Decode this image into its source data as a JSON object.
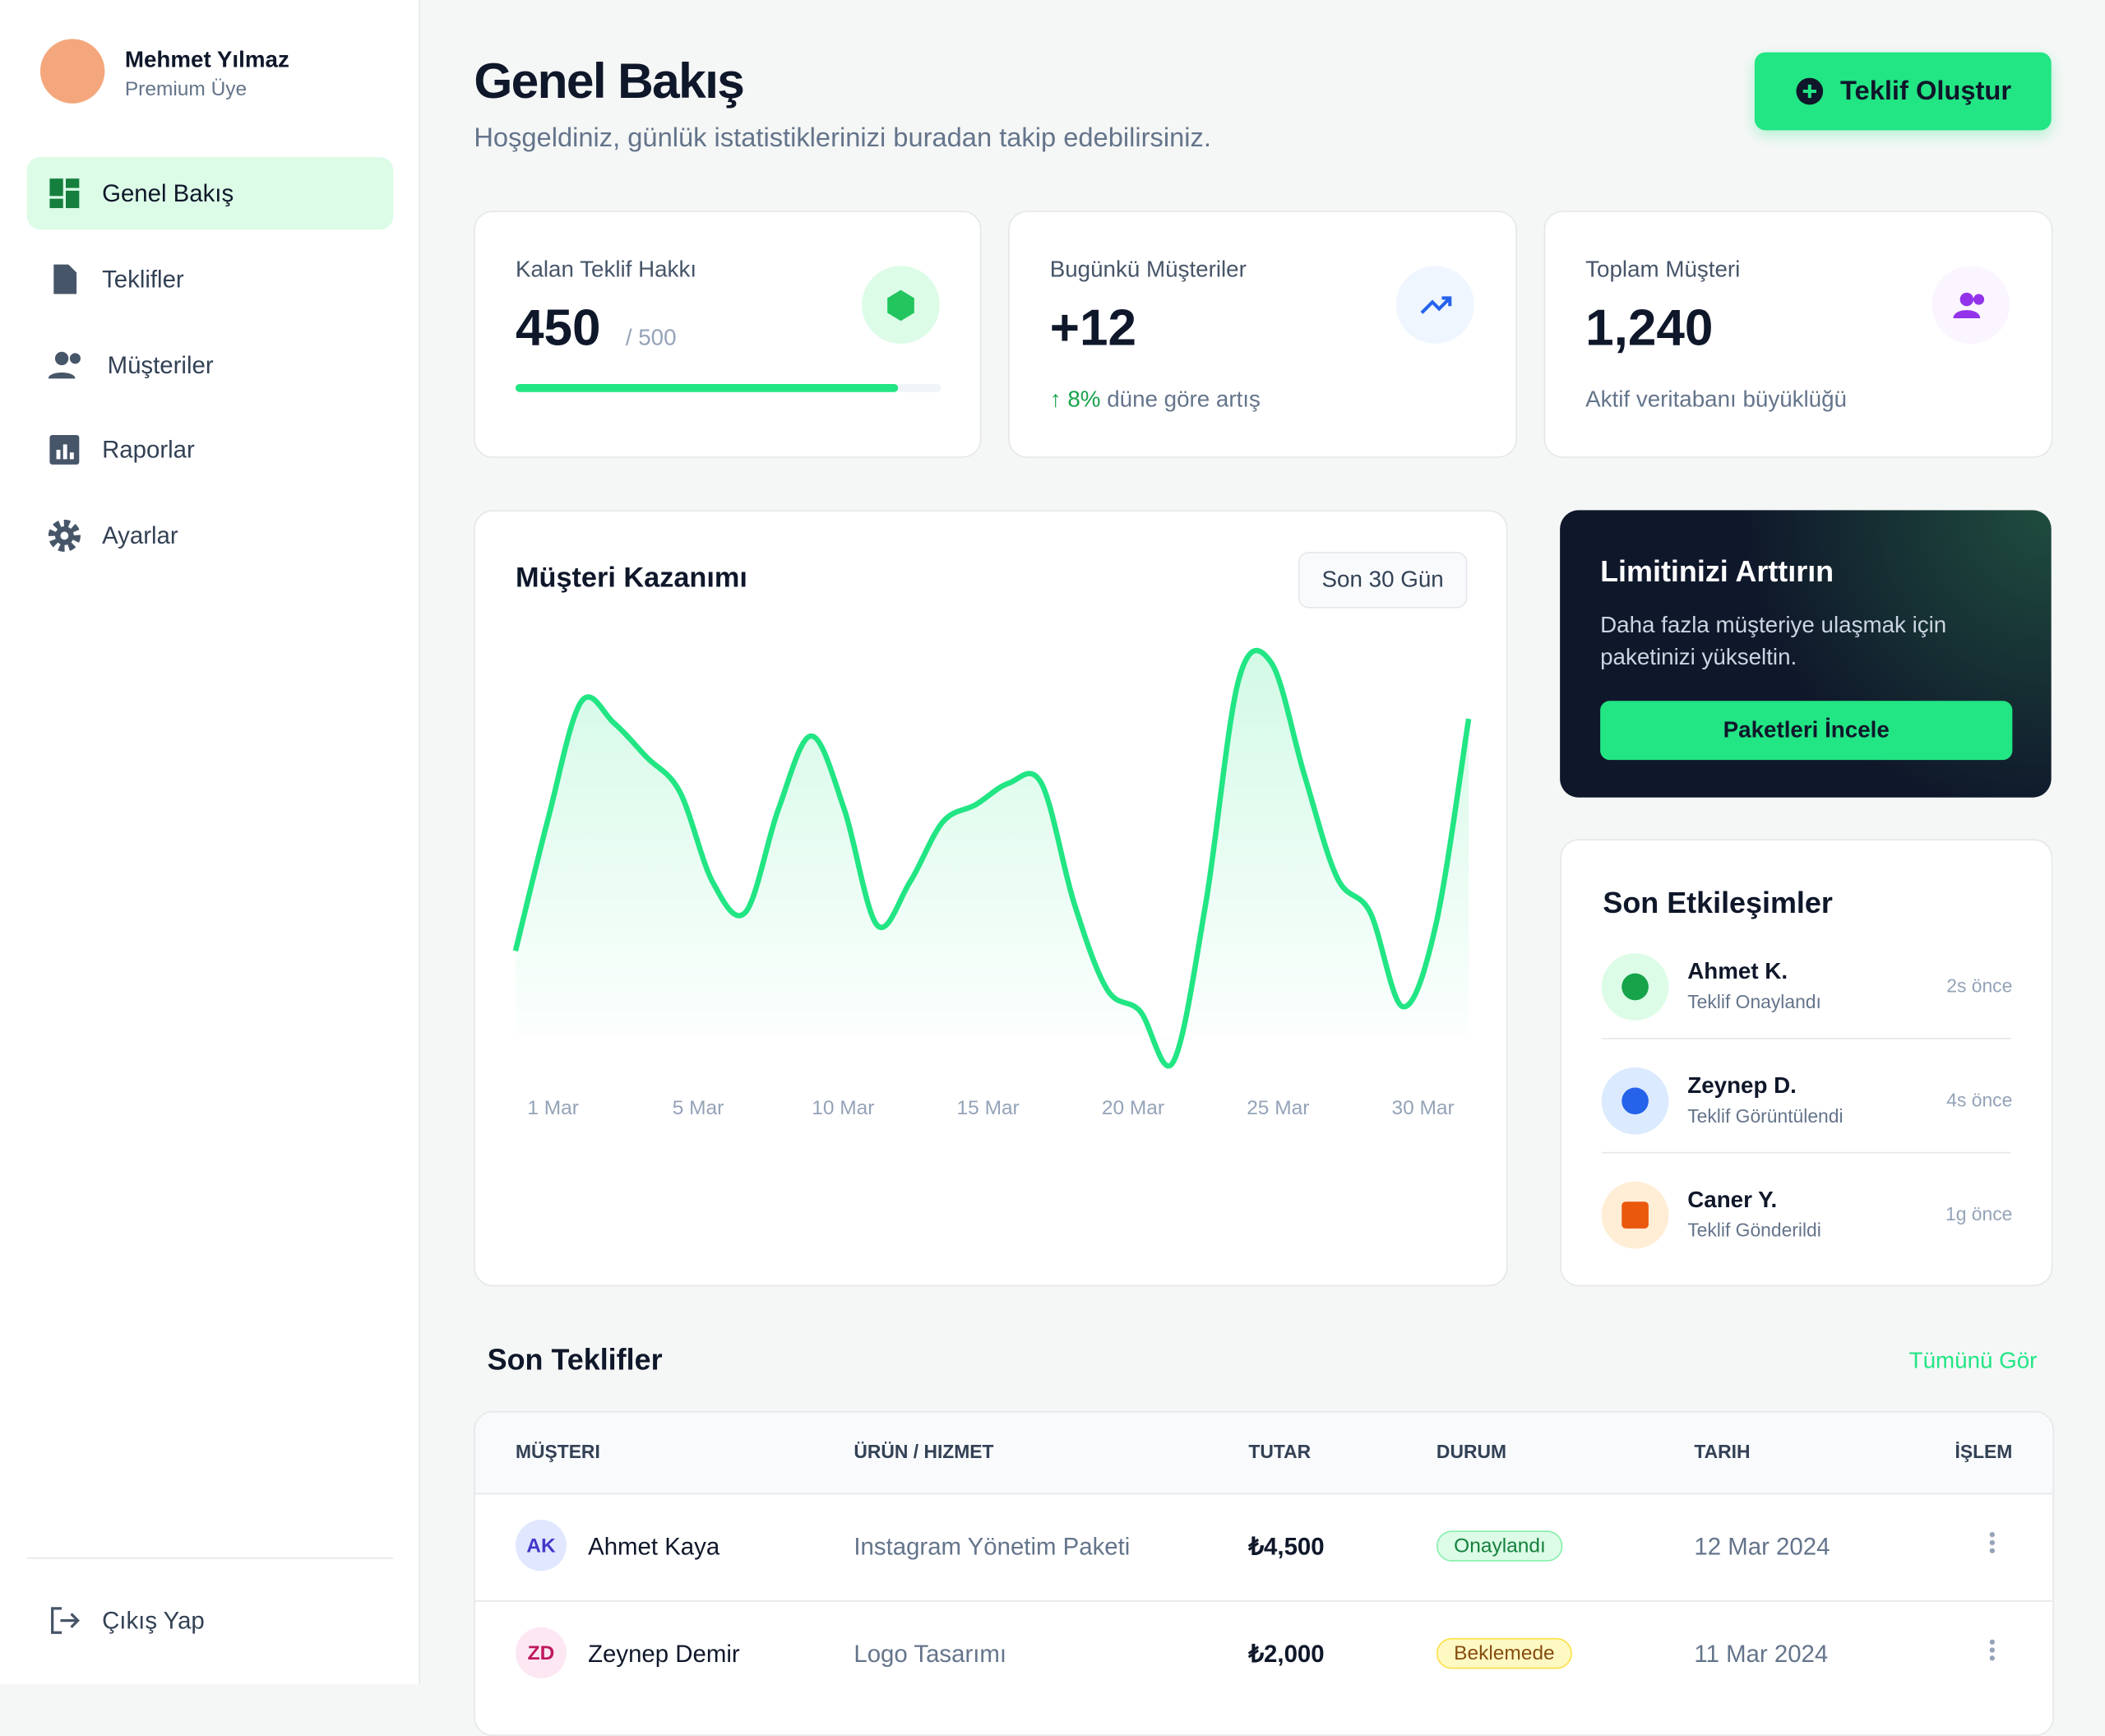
{
  "sidebar": {
    "user": {
      "name": "Mehmet Yılmaz",
      "plan": "Premium Üye"
    },
    "nav": [
      "Genel Bakış",
      "Teklifler",
      "Müşteriler",
      "Raporlar",
      "Ayarlar"
    ],
    "logout": "Çıkış Yap"
  },
  "header": {
    "title": "Genel Bakış",
    "subtitle": "Hoşgeldiniz, günlük istatistiklerinizi buradan takip edebilirsiniz.",
    "button": "Teklif Oluştur"
  },
  "stats": [
    {
      "label": "Kalan Teklif Hakkı",
      "value": 450,
      "total": {
        "value": 500,
        "label": "/ 500"
      }
    },
    {
      "label": "Bugünkü Müşteriler",
      "value": "+12",
      "change": "8%",
      "note": "düne göre artış"
    },
    {
      "label": "Toplam Müşteri",
      "value": "1,240",
      "note": "Aktif veritabanı büyüklüğü"
    }
  ],
  "chart_data": {
    "type": "line",
    "title": "Müşteri Kazanımı",
    "range": "Son 30 Gün",
    "color": "#22e584",
    "categories": [
      "1 Mar",
      null,
      null,
      null,
      "5 Mar",
      null,
      null,
      null,
      null,
      "10 Mar",
      null,
      null,
      null,
      null,
      "15 Mar",
      null,
      null,
      null,
      null,
      "20 Mar",
      null,
      null,
      null,
      null,
      "25 Mar",
      null,
      null,
      null,
      null,
      "30 Mar"
    ],
    "values": [
      29,
      60,
      87,
      82,
      74,
      66,
      45,
      38,
      62,
      79,
      62,
      35,
      45,
      59,
      63,
      68,
      68,
      40,
      20,
      15,
      3,
      40,
      92,
      96,
      70,
      46,
      38,
      16,
      35,
      83
    ],
    "ylim": [
      0,
      100
    ]
  },
  "promo": {
    "title": "Limitinizi Arttırın",
    "text": "Daha fazla müşteriye ulaşmak için paketinizi yükseltin.",
    "button": "Paketleri İncele"
  },
  "activity": {
    "title": "Son Etkileşimler",
    "items": [
      {
        "name": "Ahmet K.",
        "action": "Teklif Onaylandı",
        "time": "2s önce"
      },
      {
        "name": "Zeynep D.",
        "action": "Teklif Görüntülendi",
        "time": "4s önce"
      },
      {
        "name": "Caner Y.",
        "action": "Teklif Gönderildi",
        "time": "1g önce"
      }
    ]
  },
  "offers": {
    "title": "Son Teklifler",
    "link": "Tümünü Gör",
    "columns": [
      "MÜŞTERI",
      "ÜRÜN / HIZMET",
      "TUTAR",
      "DURUM",
      "TARIH",
      "İŞLEM"
    ],
    "rows": [
      {
        "initials": "AK",
        "customer": "Ahmet Kaya",
        "product": "Instagram Yönetim Paketi",
        "amount": "₺4,500",
        "status": "Onaylandı",
        "date": "12 Mar 2024"
      },
      {
        "initials": "ZD",
        "customer": "Zeynep Demir",
        "product": "Logo Tasarımı",
        "amount": "₺2,000",
        "status": "Beklemede",
        "date": "11 Mar 2024"
      }
    ]
  }
}
